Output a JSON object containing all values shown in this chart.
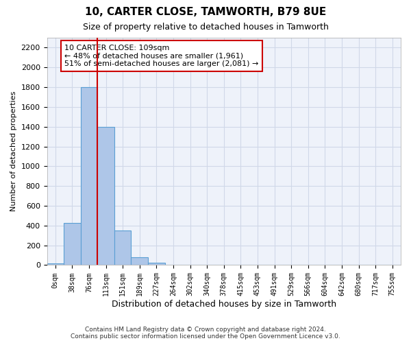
{
  "title": "10, CARTER CLOSE, TAMWORTH, B79 8UE",
  "subtitle": "Size of property relative to detached houses in Tamworth",
  "xlabel": "Distribution of detached houses by size in Tamworth",
  "ylabel": "Number of detached properties",
  "bar_color": "#aec6e8",
  "bar_edge_color": "#5a9fd4",
  "vline_color": "#cc0000",
  "vline_x_index": 2.5,
  "annotation_text": "10 CARTER CLOSE: 109sqm\n← 48% of detached houses are smaller (1,961)\n51% of semi-detached houses are larger (2,081) →",
  "annotation_box_color": "#ffffff",
  "annotation_box_edge_color": "#cc0000",
  "bins": [
    "0sqm",
    "38sqm",
    "76sqm",
    "113sqm",
    "151sqm",
    "189sqm",
    "227sqm",
    "264sqm",
    "302sqm",
    "340sqm",
    "378sqm",
    "415sqm",
    "453sqm",
    "491sqm",
    "529sqm",
    "566sqm",
    "604sqm",
    "642sqm",
    "680sqm",
    "717sqm",
    "755sqm"
  ],
  "values": [
    15,
    425,
    1800,
    1400,
    350,
    80,
    25,
    5,
    0,
    0,
    0,
    0,
    0,
    0,
    0,
    0,
    0,
    0,
    0,
    0,
    0
  ],
  "ylim": [
    0,
    2300
  ],
  "yticks": [
    0,
    200,
    400,
    600,
    800,
    1000,
    1200,
    1400,
    1600,
    1800,
    2000,
    2200
  ],
  "footer_line1": "Contains HM Land Registry data © Crown copyright and database right 2024.",
  "footer_line2": "Contains public sector information licensed under the Open Government Licence v3.0.",
  "grid_color": "#d0d8e8",
  "background_color": "#eef2fa"
}
